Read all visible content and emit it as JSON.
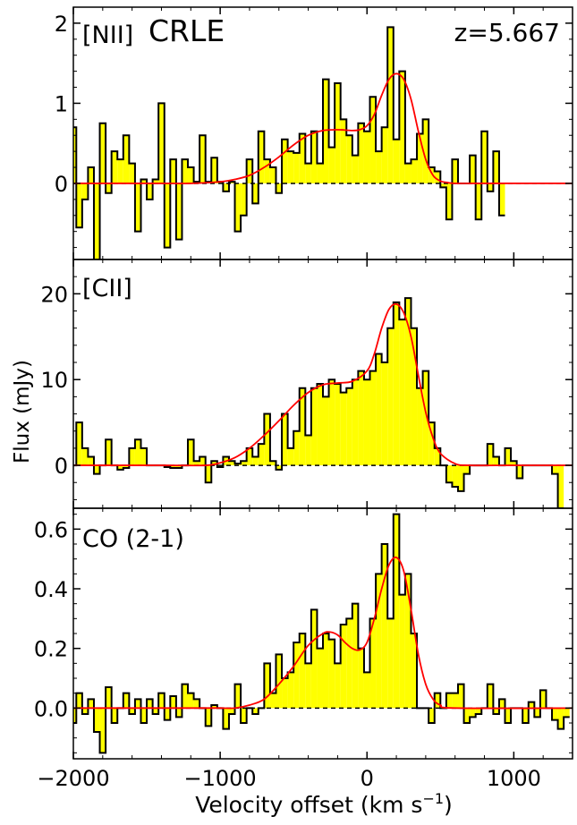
{
  "figure": {
    "ylabel": "Flux (mJy)",
    "xlabel_main": "Velocity offset (km s",
    "xlabel_sup": "−1",
    "xlabel_close": ")",
    "object": "CRLE",
    "redshift": "z=5.667"
  },
  "chart_data": [
    {
      "type": "line",
      "title": "[NII]",
      "xlim": [
        -2000,
        1400
      ],
      "ylim": [
        -0.95,
        2.2
      ],
      "yticks": [
        0,
        1,
        2
      ],
      "ytick_labels": [
        "0",
        "1",
        "2"
      ],
      "step_width": 40,
      "spectrum_x": [
        -2000,
        -1960,
        -1920,
        -1880,
        -1840,
        -1800,
        -1760,
        -1720,
        -1680,
        -1640,
        -1600,
        -1560,
        -1520,
        -1480,
        -1440,
        -1400,
        -1360,
        -1320,
        -1280,
        -1240,
        -1200,
        -1160,
        -1120,
        -1080,
        -1040,
        -1000,
        -960,
        -920,
        -880,
        -840,
        -800,
        -760,
        -720,
        -680,
        -640,
        -600,
        -560,
        -520,
        -480,
        -440,
        -400,
        -360,
        -320,
        -280,
        -240,
        -200,
        -160,
        -120,
        -80,
        -40,
        0,
        40,
        80,
        120,
        160,
        200,
        240,
        280,
        320,
        360,
        400,
        440,
        480,
        520,
        560,
        600,
        640,
        680,
        720,
        760,
        800,
        840,
        880,
        920
      ],
      "spectrum_y": [
        0.7,
        -0.55,
        -0.2,
        0.2,
        -0.95,
        0.75,
        -0.12,
        0.4,
        0.3,
        0.6,
        0.25,
        -0.6,
        0.05,
        -0.2,
        0.05,
        1.0,
        -0.8,
        0.3,
        -0.7,
        0.3,
        0.2,
        0.02,
        0.6,
        0.02,
        0.32,
        0.02,
        -0.1,
        0.02,
        -0.6,
        -0.4,
        0.3,
        -0.25,
        0.65,
        0.3,
        0.2,
        -0.12,
        0.55,
        0.4,
        0.38,
        0.62,
        0.25,
        0.65,
        0.25,
        1.3,
        0.45,
        1.25,
        0.8,
        0.6,
        0.35,
        0.75,
        0.65,
        1.08,
        0.4,
        0.7,
        1.95,
        0.55,
        1.4,
        0.25,
        0.3,
        0.62,
        0.8,
        0.2,
        0.15,
        -0.05,
        -0.45,
        0.3,
        0.0,
        0.0,
        0.35,
        -0.45,
        0.65,
        -0.1,
        0.4,
        -0.4,
        0.1
      ],
      "fit_x": [
        -2000,
        -1700,
        -1400,
        -1200,
        -1000,
        -900,
        -800,
        -700,
        -600,
        -500,
        -400,
        -300,
        -200,
        -100,
        -50,
        0,
        50,
        100,
        150,
        200,
        250,
        300,
        350,
        400,
        450,
        500,
        550,
        600,
        700,
        800,
        1000,
        1400
      ],
      "fit_y": [
        0,
        0,
        0,
        0.0,
        0.02,
        0.05,
        0.1,
        0.2,
        0.33,
        0.48,
        0.6,
        0.66,
        0.67,
        0.66,
        0.67,
        0.72,
        0.86,
        1.1,
        1.3,
        1.37,
        1.3,
        1.05,
        0.65,
        0.3,
        0.1,
        0.03,
        0.01,
        0,
        0,
        0,
        0,
        0
      ],
      "colors": {
        "fill": "#ffff00",
        "step": "#000000",
        "fit": "#ff0000",
        "zero": "#000000"
      }
    },
    {
      "type": "line",
      "title": "[CII]",
      "xlim": [
        -2000,
        1400
      ],
      "ylim": [
        -5,
        24
      ],
      "yticks": [
        0,
        10,
        20
      ],
      "ytick_labels": [
        "0",
        "10",
        "20"
      ],
      "step_width": 40,
      "spectrum_x": [
        -2000,
        -1960,
        -1920,
        -1880,
        -1840,
        -1800,
        -1760,
        -1720,
        -1680,
        -1640,
        -1600,
        -1560,
        -1520,
        -1480,
        -1440,
        -1400,
        -1360,
        -1320,
        -1280,
        -1240,
        -1200,
        -1160,
        -1120,
        -1080,
        -1040,
        -1000,
        -960,
        -920,
        -880,
        -840,
        -800,
        -760,
        -720,
        -680,
        -640,
        -600,
        -560,
        -520,
        -480,
        -440,
        -400,
        -360,
        -320,
        -280,
        -240,
        -200,
        -160,
        -120,
        -80,
        -40,
        0,
        40,
        80,
        120,
        160,
        200,
        240,
        280,
        320,
        360,
        400,
        440,
        480,
        520,
        560,
        600,
        640,
        680,
        720,
        760,
        800,
        840,
        880,
        920,
        960,
        1000,
        1040,
        1080,
        1120,
        1160,
        1200,
        1240,
        1280,
        1320
      ],
      "spectrum_y": [
        0,
        5,
        2,
        1,
        -1,
        0,
        3,
        0,
        -0.5,
        -0.3,
        2,
        3,
        2,
        0,
        0,
        0,
        -0.2,
        -0.3,
        -0.3,
        0,
        3,
        0.5,
        1,
        -2,
        0.5,
        -0.2,
        1,
        0.5,
        0.2,
        0.5,
        2,
        1,
        2.5,
        6,
        0.5,
        -0.5,
        6,
        2,
        4,
        9,
        3.5,
        9,
        9.5,
        8,
        10,
        9.5,
        8.5,
        9,
        10,
        11,
        10,
        11,
        13,
        12,
        16,
        19,
        17,
        19.5,
        16,
        9,
        11,
        5,
        2,
        0,
        -2,
        -2.5,
        -3,
        -1,
        0,
        0,
        0,
        2.5,
        1,
        0,
        2,
        0.5,
        -1.5,
        0,
        0,
        0,
        0,
        0,
        -1,
        -5
      ],
      "fit_x": [
        -2000,
        -1400,
        -1100,
        -1000,
        -900,
        -800,
        -700,
        -600,
        -500,
        -400,
        -300,
        -200,
        -100,
        0,
        50,
        100,
        150,
        200,
        250,
        300,
        350,
        400,
        450,
        500,
        600,
        700,
        1000,
        1400
      ],
      "fit_y": [
        0,
        0,
        0,
        0.3,
        0.9,
        2.0,
        3.5,
        5.2,
        7.0,
        8.5,
        9.4,
        9.6,
        9.8,
        11.0,
        13.0,
        16.0,
        18.2,
        18.8,
        17.8,
        15.0,
        10.5,
        6.2,
        3.2,
        1.4,
        0.2,
        0,
        0,
        0
      ],
      "colors": {
        "fill": "#ffff00",
        "step": "#000000",
        "fit": "#ff0000",
        "zero": "#000000"
      }
    },
    {
      "type": "line",
      "title": "CO (2-1)",
      "xlim": [
        -2000,
        1400
      ],
      "ylim": [
        -0.17,
        0.67
      ],
      "yticks": [
        0.0,
        0.2,
        0.4,
        0.6
      ],
      "ytick_labels": [
        "0.0",
        "0.2",
        "0.4",
        "0.6"
      ],
      "step_width": 40,
      "spectrum_x": [
        -2000,
        -1960,
        -1920,
        -1880,
        -1840,
        -1800,
        -1760,
        -1720,
        -1680,
        -1640,
        -1600,
        -1560,
        -1520,
        -1480,
        -1440,
        -1400,
        -1360,
        -1320,
        -1280,
        -1240,
        -1200,
        -1160,
        -1120,
        -1080,
        -1040,
        -1000,
        -960,
        -920,
        -880,
        -840,
        -800,
        -760,
        -720,
        -680,
        -640,
        -600,
        -560,
        -520,
        -480,
        -440,
        -400,
        -360,
        -320,
        -280,
        -240,
        -200,
        -160,
        -120,
        -80,
        -40,
        0,
        40,
        80,
        120,
        160,
        200,
        240,
        280,
        320,
        360,
        400,
        440,
        480,
        520,
        560,
        600,
        640,
        680,
        720,
        760,
        800,
        840,
        880,
        920,
        960,
        1000,
        1040,
        1080,
        1120,
        1160,
        1200,
        1240,
        1280,
        1320,
        1360
      ],
      "spectrum_y": [
        -0.05,
        0.05,
        -0.02,
        0.03,
        -0.08,
        -0.15,
        0.07,
        -0.05,
        0.0,
        0.05,
        -0.02,
        0.03,
        -0.05,
        0.03,
        -0.02,
        0.05,
        -0.04,
        0.04,
        -0.03,
        0.08,
        0.05,
        0.03,
        0.0,
        -0.06,
        0.01,
        0.0,
        -0.07,
        -0.02,
        0.08,
        -0.05,
        0.0,
        -0.02,
        0.0,
        0.15,
        0.05,
        0.18,
        0.1,
        0.12,
        0.22,
        0.25,
        0.15,
        0.33,
        0.2,
        0.25,
        0.23,
        0.15,
        0.28,
        0.3,
        0.35,
        0.2,
        0.12,
        0.3,
        0.45,
        0.55,
        0.3,
        0.65,
        0.38,
        0.45,
        0.25,
        0.0,
        0.0,
        -0.05,
        0.05,
        0.0,
        0.05,
        0.05,
        0.08,
        -0.05,
        -0.03,
        -0.02,
        0.0,
        0.08,
        -0.02,
        0.03,
        -0.05,
        0.0,
        0.0,
        -0.05,
        0.02,
        -0.03,
        0.06,
        0.0,
        -0.04,
        -0.07,
        -0.03,
        0.0
      ],
      "fit_x": [
        -2000,
        -1200,
        -1000,
        -900,
        -800,
        -700,
        -600,
        -500,
        -400,
        -300,
        -250,
        -200,
        -150,
        -100,
        -50,
        0,
        50,
        100,
        150,
        200,
        250,
        300,
        350,
        400,
        450,
        500,
        600,
        1400
      ],
      "fit_y": [
        0,
        0,
        0,
        0.0,
        0.01,
        0.03,
        0.08,
        0.14,
        0.21,
        0.25,
        0.255,
        0.245,
        0.22,
        0.2,
        0.195,
        0.22,
        0.3,
        0.4,
        0.48,
        0.505,
        0.46,
        0.33,
        0.18,
        0.08,
        0.03,
        0.01,
        0,
        0
      ],
      "colors": {
        "fill": "#ffff00",
        "step": "#000000",
        "fit": "#ff0000",
        "zero": "#000000"
      }
    }
  ],
  "shared_x_axis": {
    "xticks": [
      -2000,
      -1000,
      0,
      1000
    ],
    "xtick_labels": [
      "−2000",
      "−1000",
      "0",
      "1000"
    ]
  }
}
